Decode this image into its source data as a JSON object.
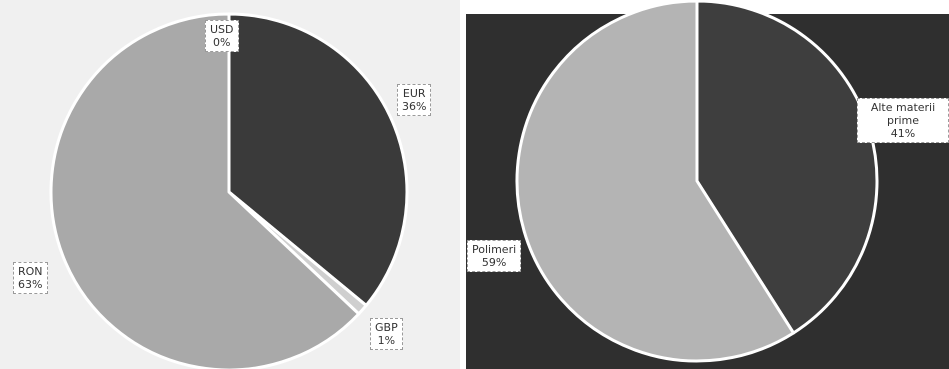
{
  "chart_data": [
    {
      "type": "pie",
      "slices": [
        {
          "name": "EUR",
          "value": 36,
          "value_label": "36%",
          "color": "#3a3a3a"
        },
        {
          "name": "GBP",
          "value": 1,
          "value_label": "1%",
          "color": "#cfcfcf"
        },
        {
          "name": "RON",
          "value": 63,
          "value_label": "63%",
          "color": "#a9a9a9"
        },
        {
          "name": "USD",
          "value": 0,
          "value_label": "0%",
          "color": "#ffffff"
        }
      ],
      "background": "#f0f0f0"
    },
    {
      "type": "pie",
      "slices": [
        {
          "name": "Alte materii prime",
          "value": 41,
          "value_label": "41%",
          "color": "#3e3e3e"
        },
        {
          "name": "Polimeri",
          "value": 59,
          "value_label": "59%",
          "color": "#b4b4b4"
        }
      ],
      "background": "#2f2f2f"
    }
  ]
}
